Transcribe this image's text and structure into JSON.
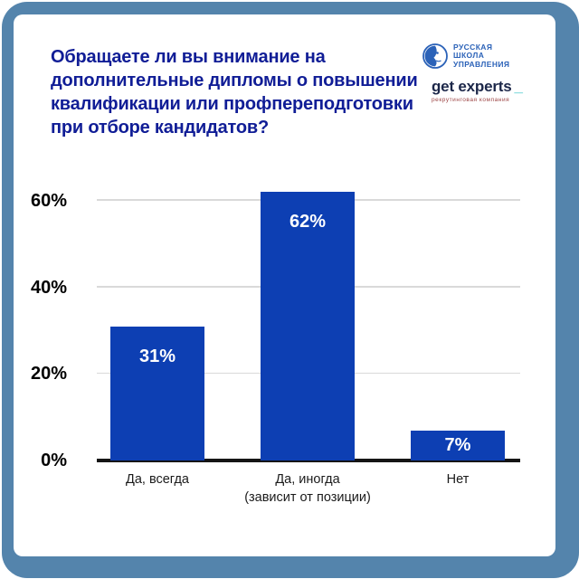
{
  "frame": {
    "border_color": "#5484ac"
  },
  "header": {
    "title": "Обращаете ли вы внимание на\nдополнительные дипломы о повышении\nквалификации или профпереподготовки\nпри отборе кандидатов?",
    "title_color": "#101d96",
    "logos": {
      "rsu": {
        "name": "РУССКАЯ ШКОЛА УПРАВЛЕНИЯ",
        "lines": "РУССКАЯ\nШКОЛА\nУПРАВЛЕНИЯ",
        "color": "#2b62b8",
        "icon": "rsu-globe-face-icon"
      },
      "get_experts": {
        "wordmark": "get experts",
        "cursor": "_",
        "tagline": "рекрутинговая компания",
        "wordmark_color": "#1c2749",
        "cursor_color": "#2fc0c4",
        "tagline_color": "#9c4444"
      }
    }
  },
  "chart_data": {
    "type": "bar",
    "title": "Обращаете ли вы внимание на дополнительные дипломы о повышении квалификации или профпереподготовки при отборе кандидатов?",
    "categories": [
      "Да, всегда",
      "Да, иногда\n(зависит от позиции)",
      "Нет"
    ],
    "values": [
      31,
      62,
      7
    ],
    "value_labels": [
      "31%",
      "62%",
      "7%"
    ],
    "yticks": [
      {
        "value": 0,
        "label": "0%"
      },
      {
        "value": 20,
        "label": "20%"
      },
      {
        "value": 40,
        "label": "40%"
      },
      {
        "value": 60,
        "label": "60%"
      }
    ],
    "ylim": [
      0,
      62.5
    ],
    "grid": true,
    "legend": false,
    "xlabel": "",
    "ylabel": "",
    "bar_color": "#0d3fb3",
    "value_label_color": "#ffffff",
    "axis_line_color": "#151515",
    "gridline_color": "#d9d9d9"
  }
}
